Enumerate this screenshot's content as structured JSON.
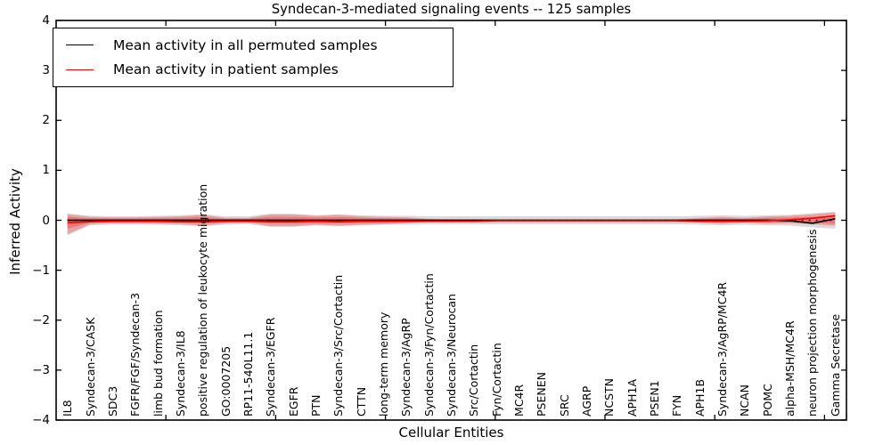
{
  "chart_data": {
    "type": "line",
    "title": "Syndecan-3-mediated signaling events -- 125 samples",
    "xlabel": "Cellular Entities",
    "ylabel": "Inferred Activity",
    "ylim": [
      -4,
      4
    ],
    "grid": false,
    "legend_position": "upper left",
    "yticks": [
      {
        "value": 4,
        "label": "4"
      },
      {
        "value": 3,
        "label": "3"
      },
      {
        "value": 2,
        "label": "2"
      },
      {
        "value": 1,
        "label": "1"
      },
      {
        "value": 0,
        "label": "0"
      },
      {
        "value": -1,
        "label": "−1"
      },
      {
        "value": -2,
        "label": "−2"
      },
      {
        "value": -3,
        "label": "−3"
      },
      {
        "value": -4,
        "label": "−4"
      }
    ],
    "categories": [
      "IL8",
      "Syndecan-3/CASK",
      "SDC3",
      "FGFR/FGF/Syndecan-3",
      "limb bud formation",
      "Syndecan-3/IL8",
      "positive regulation of leukocyte migration",
      "GO:0007205",
      "RP11-540L11.1",
      "Syndecan-3/EGFR",
      "EGFR",
      "PTN",
      "Syndecan-3/Src/Cortactin",
      "CTTN",
      "long-term memory",
      "Syndecan-3/AgRP",
      "Syndecan-3/Fyn/Cortactin",
      "Syndecan-3/Neurocan",
      "Src/Cortactin",
      "Fyn/Cortactin",
      "MC4R",
      "PSENEN",
      "SRC",
      "AGRP",
      "NCSTN",
      "APH1A",
      "PSEN1",
      "FYN",
      "APH1B",
      "Syndecan-3/AgRP/MC4R",
      "NCAN",
      "POMC",
      "alpha-MSH/MC4R",
      "neuron projection morphogenesis",
      "Gamma Secretase"
    ],
    "baseline": {
      "value": 0,
      "style": "dotted",
      "color": "#000000"
    },
    "series": [
      {
        "name": "Mean activity in all permuted samples",
        "color": "#000000",
        "style": "solid",
        "values": [
          0,
          0,
          0,
          0,
          0,
          0,
          0,
          0,
          0,
          0,
          0,
          0,
          0,
          0,
          0,
          0,
          0,
          0,
          0,
          0,
          0,
          0,
          0,
          0,
          0,
          0,
          0,
          0,
          0,
          0,
          0,
          0,
          -0.01,
          -0.06,
          0.03
        ]
      },
      {
        "name": "Mean activity in patient samples",
        "color": "#ff0000",
        "style": "solid",
        "values": [
          -0.05,
          -0.03,
          -0.02,
          -0.02,
          -0.02,
          -0.03,
          -0.03,
          -0.02,
          -0.02,
          -0.03,
          -0.03,
          -0.02,
          -0.03,
          -0.02,
          -0.02,
          -0.02,
          -0.02,
          -0.02,
          -0.02,
          -0.01,
          -0.01,
          -0.01,
          -0.01,
          -0.01,
          -0.01,
          -0.01,
          -0.01,
          -0.01,
          -0.02,
          -0.02,
          -0.02,
          -0.01,
          0.01,
          0.04,
          0.09
        ]
      }
    ],
    "bands": [
      {
        "name": "permuted-samples-band",
        "color": "#999999",
        "opacity": 0.35,
        "upper": [
          0.14,
          0.09,
          0.08,
          0.08,
          0.09,
          0.1,
          0.12,
          0.08,
          0.08,
          0.13,
          0.13,
          0.1,
          0.12,
          0.1,
          0.09,
          0.09,
          0.08,
          0.08,
          0.08,
          0.08,
          0.08,
          0.08,
          0.08,
          0.08,
          0.08,
          0.08,
          0.08,
          0.08,
          0.09,
          0.1,
          0.09,
          0.1,
          0.11,
          0.14,
          0.17
        ],
        "lower": [
          -0.3,
          -0.1,
          -0.09,
          -0.09,
          -0.09,
          -0.1,
          -0.12,
          -0.09,
          -0.08,
          -0.13,
          -0.13,
          -0.1,
          -0.12,
          -0.1,
          -0.09,
          -0.09,
          -0.08,
          -0.08,
          -0.08,
          -0.08,
          -0.08,
          -0.08,
          -0.08,
          -0.08,
          -0.08,
          -0.08,
          -0.08,
          -0.08,
          -0.09,
          -0.1,
          -0.09,
          -0.1,
          -0.11,
          -0.14,
          -0.17
        ]
      },
      {
        "name": "patient-samples-band-outer",
        "color": "#ff0000",
        "opacity": 0.25,
        "upper": [
          0.12,
          0.07,
          0.06,
          0.06,
          0.07,
          0.08,
          0.11,
          0.05,
          0.05,
          0.12,
          0.12,
          0.09,
          0.11,
          0.08,
          0.07,
          0.06,
          0.03,
          0.02,
          0.02,
          0.015,
          0.015,
          0.015,
          0.015,
          0.015,
          0.015,
          0.015,
          0.015,
          0.02,
          0.05,
          0.07,
          0.05,
          0.08,
          0.09,
          0.12,
          0.16
        ],
        "lower": [
          -0.28,
          -0.08,
          -0.06,
          -0.06,
          -0.07,
          -0.08,
          -0.11,
          -0.06,
          -0.05,
          -0.12,
          -0.12,
          -0.09,
          -0.11,
          -0.09,
          -0.08,
          -0.06,
          -0.03,
          -0.02,
          -0.02,
          -0.015,
          -0.015,
          -0.015,
          -0.015,
          -0.015,
          -0.015,
          -0.015,
          -0.015,
          -0.02,
          -0.05,
          -0.07,
          -0.05,
          -0.07,
          -0.06,
          -0.08,
          -0.11
        ]
      },
      {
        "name": "patient-samples-band-inner",
        "color": "#ee2222",
        "opacity": 0.32,
        "upper": [
          0.07,
          0.04,
          0.035,
          0.035,
          0.04,
          0.05,
          0.065,
          0.03,
          0.03,
          0.07,
          0.07,
          0.055,
          0.065,
          0.05,
          0.04,
          0.035,
          0.02,
          0.012,
          0.012,
          0.01,
          0.01,
          0.01,
          0.01,
          0.01,
          0.01,
          0.01,
          0.01,
          0.012,
          0.03,
          0.04,
          0.03,
          0.05,
          0.055,
          0.07,
          0.1
        ],
        "lower": [
          -0.17,
          -0.05,
          -0.035,
          -0.035,
          -0.04,
          -0.05,
          -0.065,
          -0.035,
          -0.03,
          -0.07,
          -0.07,
          -0.055,
          -0.065,
          -0.055,
          -0.05,
          -0.035,
          -0.02,
          -0.012,
          -0.012,
          -0.01,
          -0.01,
          -0.01,
          -0.01,
          -0.01,
          -0.01,
          -0.01,
          -0.01,
          -0.012,
          -0.03,
          -0.04,
          -0.03,
          -0.045,
          -0.04,
          -0.05,
          -0.07
        ]
      }
    ]
  }
}
